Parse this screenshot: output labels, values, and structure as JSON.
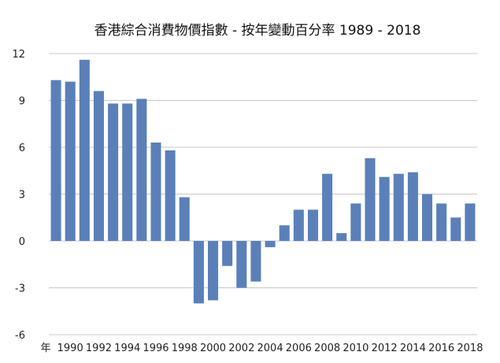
{
  "colors": {
    "bar": "#5b80b9",
    "grid": "#c8c8c8",
    "text": "#111111"
  },
  "chart_data": {
    "type": "bar",
    "title": "香港綜合消費物價指數 - 按年變動百分率 1989 - 2018",
    "xlabel": "年",
    "ylabel": "",
    "ylim": [
      -6,
      12
    ],
    "yticks": [
      12,
      9,
      6,
      3,
      0,
      -3,
      -6
    ],
    "grid": true,
    "categories": [
      "1989",
      "1990",
      "1991",
      "1992",
      "1993",
      "1994",
      "1995",
      "1996",
      "1997",
      "1998",
      "1999",
      "2000",
      "2001",
      "2002",
      "2003",
      "2004",
      "2005",
      "2006",
      "2007",
      "2008",
      "2009",
      "2010",
      "2011",
      "2012",
      "2013",
      "2014",
      "2015",
      "2016",
      "2017",
      "2018"
    ],
    "x_tick_labels": [
      "1990",
      "1992",
      "1994",
      "1996",
      "1998",
      "2000",
      "2002",
      "2004",
      "2006",
      "2008",
      "2010",
      "2012",
      "2014",
      "2016",
      "2018"
    ],
    "values": [
      10.3,
      10.2,
      11.6,
      9.6,
      8.8,
      8.8,
      9.1,
      6.3,
      5.8,
      2.8,
      -4.0,
      -3.8,
      -1.6,
      -3.0,
      -2.6,
      -0.4,
      1.0,
      2.0,
      2.0,
      4.3,
      0.5,
      2.4,
      5.3,
      4.1,
      4.3,
      4.4,
      3.0,
      2.4,
      1.5,
      2.4
    ]
  }
}
